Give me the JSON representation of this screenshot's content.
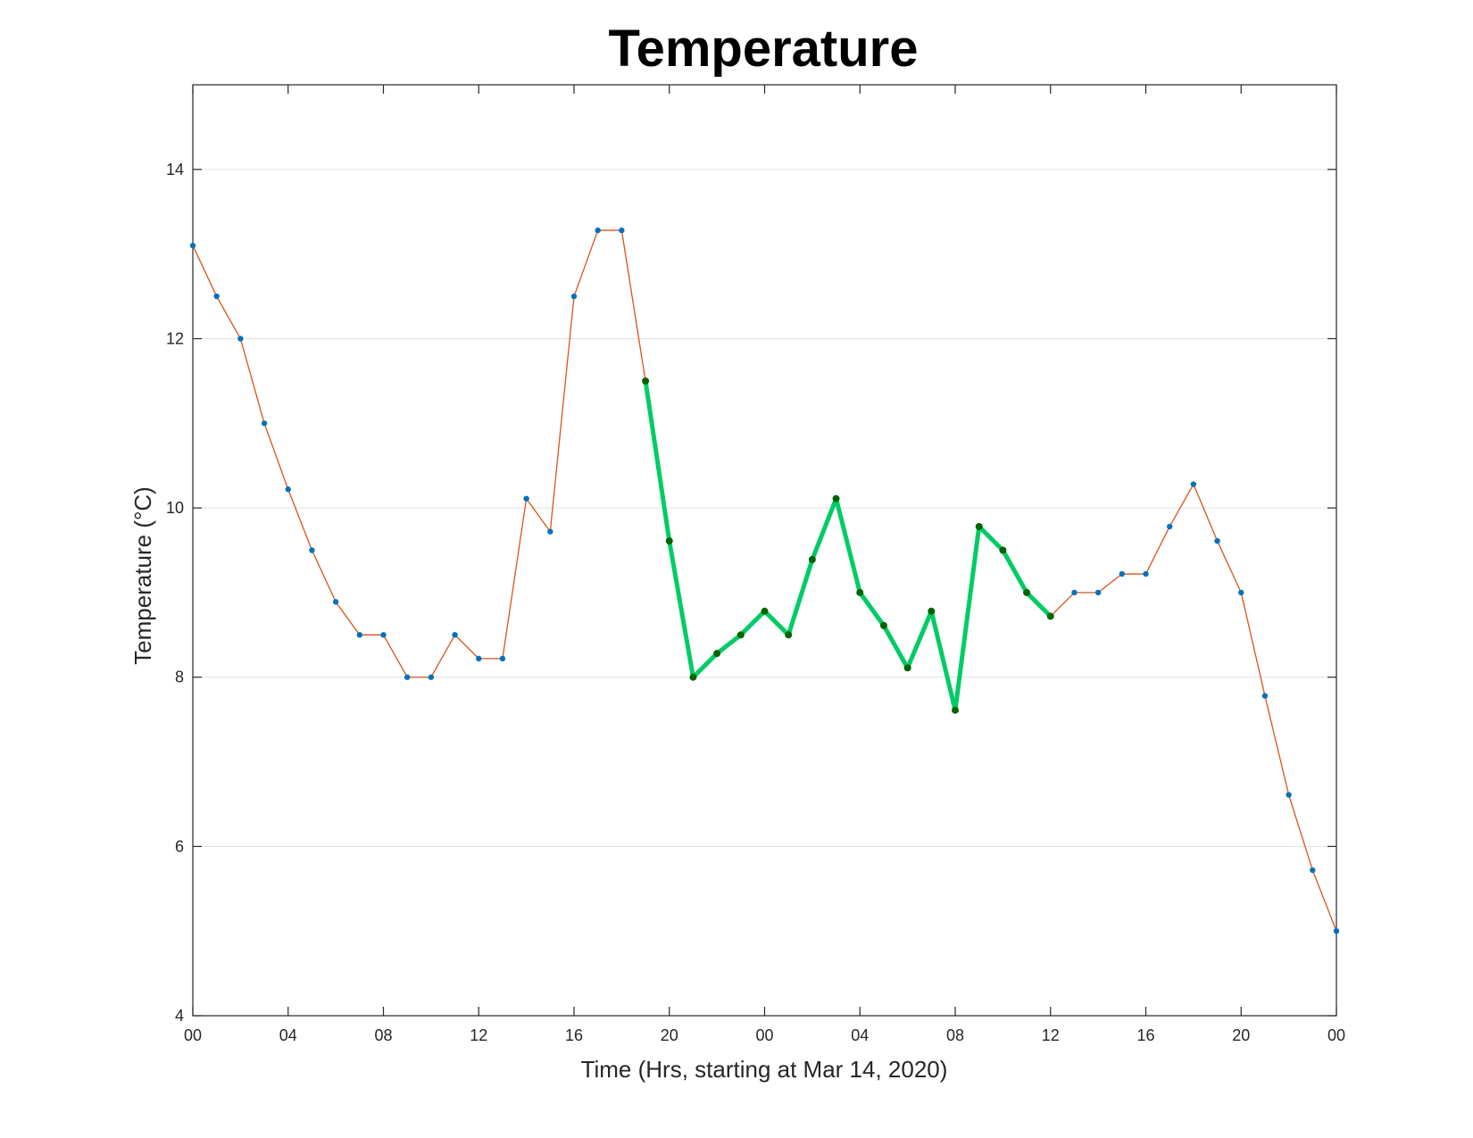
{
  "chart_data": {
    "type": "line",
    "title": "Temperature",
    "xlabel": "Time (Hrs, starting at Mar 14, 2020)",
    "ylabel": "Temperature (°C)",
    "x_unit": "hours",
    "x_tick_labels": [
      "00",
      "04",
      "08",
      "12",
      "16",
      "20",
      "00",
      "04",
      "08",
      "12",
      "16",
      "20",
      "00"
    ],
    "xlim": [
      0,
      48
    ],
    "ylim": [
      4,
      15
    ],
    "y_ticks": [
      4,
      6,
      8,
      10,
      12,
      14
    ],
    "grid": "horizontal",
    "x": [
      0,
      1,
      2,
      3,
      4,
      5,
      6,
      7,
      8,
      9,
      10,
      11,
      12,
      13,
      14,
      15,
      16,
      17,
      18,
      19,
      20,
      21,
      22,
      23,
      24,
      25,
      26,
      27,
      28,
      29,
      30,
      31,
      32,
      33,
      34,
      35,
      36,
      37,
      38,
      39,
      40,
      41,
      42,
      43,
      44,
      45,
      46,
      47,
      48
    ],
    "values": [
      13.1,
      12.5,
      12.0,
      11.0,
      10.22,
      9.5,
      8.89,
      8.5,
      8.5,
      8.0,
      8.0,
      8.5,
      8.22,
      8.22,
      10.11,
      9.72,
      12.5,
      13.28,
      13.28,
      11.5,
      9.61,
      8.0,
      8.28,
      8.5,
      8.78,
      8.5,
      9.39,
      10.11,
      9.0,
      8.61,
      8.11,
      8.78,
      7.61,
      9.78,
      9.5,
      9.0,
      8.72,
      9.0,
      9.0,
      9.22,
      9.22,
      9.78,
      10.28,
      9.61,
      9.0,
      7.78,
      6.61,
      5.72,
      5.0
    ],
    "highlight_range": [
      19,
      36
    ],
    "colors": {
      "line": "#d95319",
      "marker": "#0072bd",
      "highlight_line": "#00cc66",
      "highlight_marker": "#006400",
      "grid": "#e0e0e0",
      "axis": "#262626"
    }
  }
}
